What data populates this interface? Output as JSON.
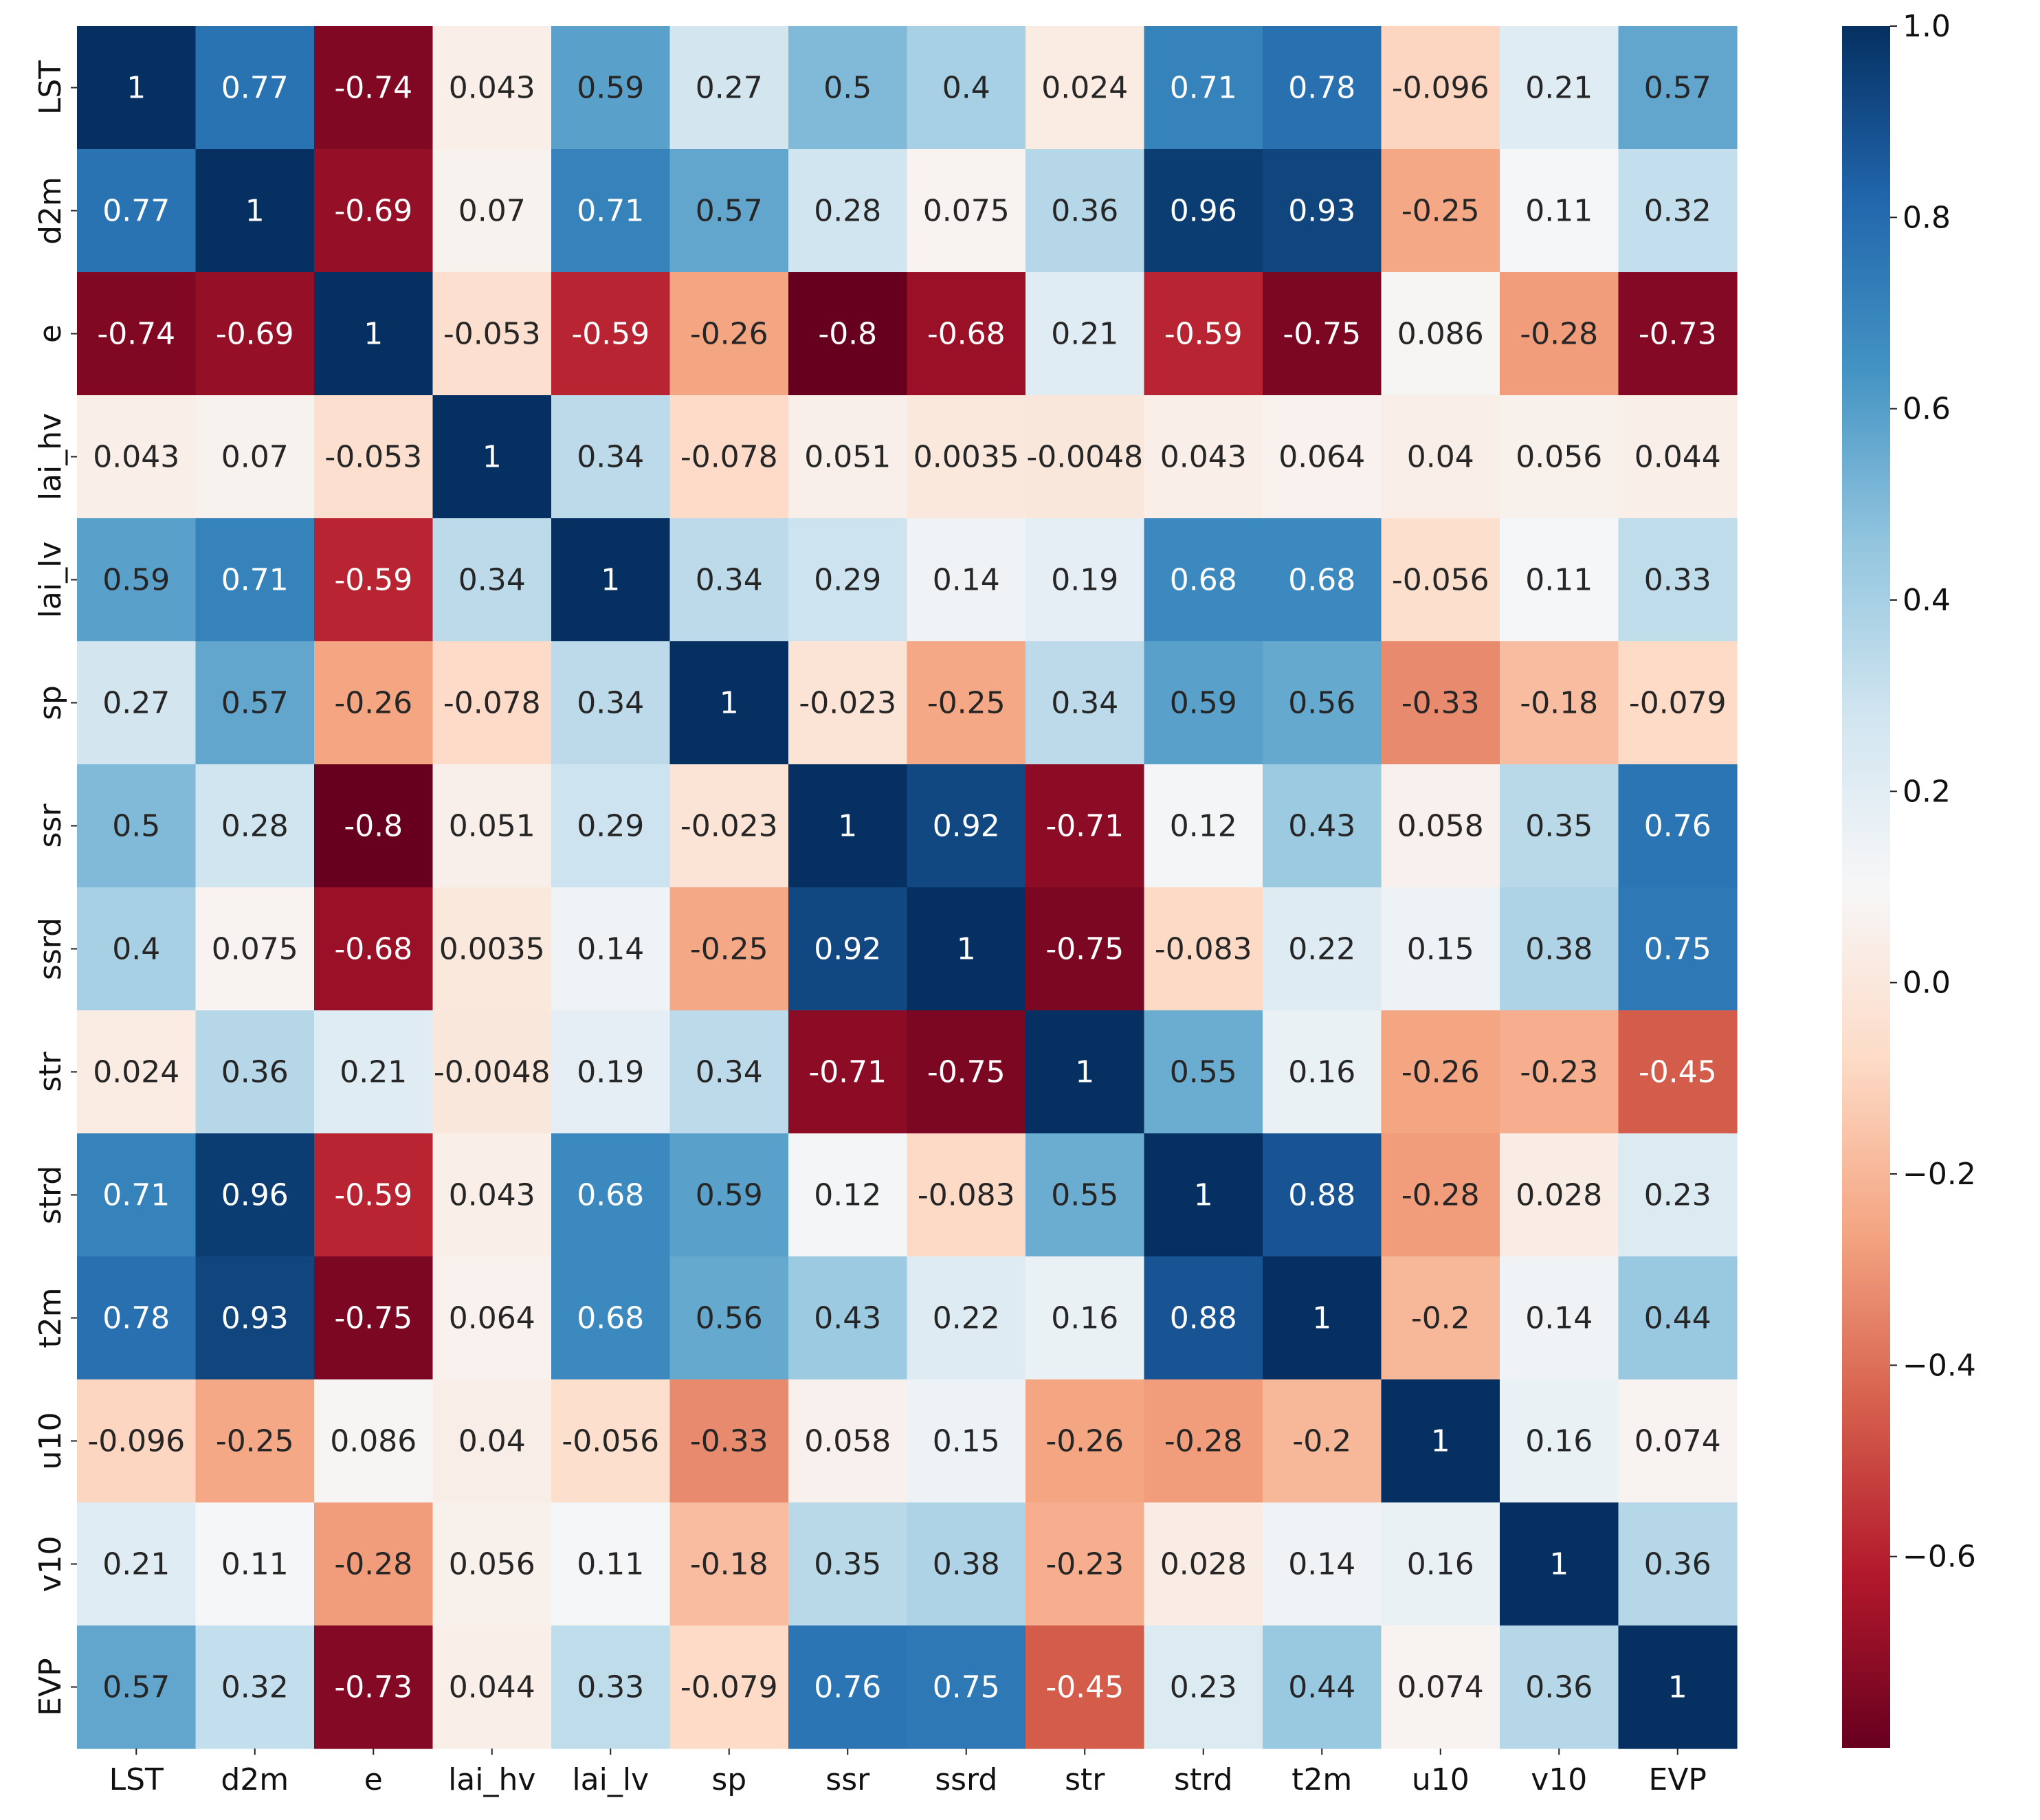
{
  "chart_data": {
    "type": "heatmap",
    "title": "",
    "xlabel": "",
    "ylabel": "",
    "variables": [
      "LST",
      "d2m",
      "e",
      "lai_hv",
      "lai_lv",
      "sp",
      "ssr",
      "ssrd",
      "str",
      "strd",
      "t2m",
      "u10",
      "v10",
      "EVP"
    ],
    "matrix": [
      [
        1,
        0.77,
        -0.74,
        0.043,
        0.59,
        0.27,
        0.5,
        0.4,
        0.024,
        0.71,
        0.78,
        -0.096,
        0.21,
        0.57
      ],
      [
        0.77,
        1,
        -0.69,
        0.07,
        0.71,
        0.57,
        0.28,
        0.075,
        0.36,
        0.96,
        0.93,
        -0.25,
        0.11,
        0.32
      ],
      [
        -0.74,
        -0.69,
        1,
        -0.053,
        -0.59,
        -0.26,
        -0.8,
        -0.68,
        0.21,
        -0.59,
        -0.75,
        0.086,
        -0.28,
        -0.73
      ],
      [
        0.043,
        0.07,
        -0.053,
        1,
        0.34,
        -0.078,
        0.051,
        0.0035,
        -0.0048,
        0.043,
        0.064,
        0.04,
        0.056,
        0.044
      ],
      [
        0.59,
        0.71,
        -0.59,
        0.34,
        1,
        0.34,
        0.29,
        0.14,
        0.19,
        0.68,
        0.68,
        -0.056,
        0.11,
        0.33
      ],
      [
        0.27,
        0.57,
        -0.26,
        -0.078,
        0.34,
        1,
        -0.023,
        -0.25,
        0.34,
        0.59,
        0.56,
        -0.33,
        -0.18,
        -0.079
      ],
      [
        0.5,
        0.28,
        -0.8,
        0.051,
        0.29,
        -0.023,
        1,
        0.92,
        -0.71,
        0.12,
        0.43,
        0.058,
        0.35,
        0.76
      ],
      [
        0.4,
        0.075,
        -0.68,
        0.0035,
        0.14,
        -0.25,
        0.92,
        1,
        -0.75,
        -0.083,
        0.22,
        0.15,
        0.38,
        0.75
      ],
      [
        0.024,
        0.36,
        0.21,
        -0.0048,
        0.19,
        0.34,
        -0.71,
        -0.75,
        1,
        0.55,
        0.16,
        -0.26,
        -0.23,
        -0.45
      ],
      [
        0.71,
        0.96,
        -0.59,
        0.043,
        0.68,
        0.59,
        0.12,
        -0.083,
        0.55,
        1,
        0.88,
        -0.28,
        0.028,
        0.23
      ],
      [
        0.78,
        0.93,
        -0.75,
        0.064,
        0.68,
        0.56,
        0.43,
        0.22,
        0.16,
        0.88,
        1,
        -0.2,
        0.14,
        0.44
      ],
      [
        -0.096,
        -0.25,
        0.086,
        0.04,
        -0.056,
        -0.33,
        0.058,
        0.15,
        -0.26,
        -0.28,
        -0.2,
        1,
        0.16,
        0.074
      ],
      [
        0.21,
        0.11,
        -0.28,
        0.056,
        0.11,
        -0.18,
        0.35,
        0.38,
        -0.23,
        0.028,
        0.14,
        0.16,
        1,
        0.36
      ],
      [
        0.57,
        0.32,
        -0.73,
        0.044,
        0.33,
        -0.079,
        0.76,
        0.75,
        -0.45,
        0.23,
        0.44,
        0.074,
        0.36,
        1
      ]
    ],
    "colormap": "RdBu",
    "color_range": [
      -0.8,
      1.0
    ],
    "colorbar_ticks": [
      1.0,
      0.8,
      0.6,
      0.4,
      0.2,
      0.0,
      -0.2,
      -0.4,
      -0.6
    ],
    "colorbar_tick_labels": [
      "1.0",
      "0.8",
      "0.6",
      "0.4",
      "0.2",
      "0.0",
      "−0.2",
      "−0.4",
      "−0.6"
    ],
    "annotations": true,
    "colorbar": true
  }
}
